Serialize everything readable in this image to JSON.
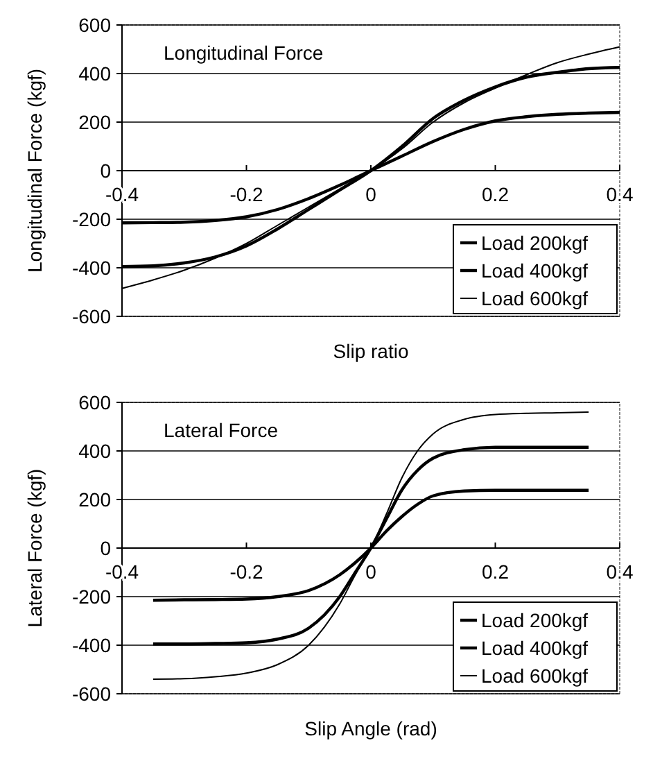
{
  "chart_data": [
    {
      "type": "line",
      "title": "Longitudinal Force",
      "xlabel": "Slip ratio",
      "ylabel": "Longitudinal Force (kgf)",
      "x": [
        -0.4,
        -0.35,
        -0.3,
        -0.25,
        -0.2,
        -0.15,
        -0.1,
        -0.05,
        0,
        0.05,
        0.1,
        0.15,
        0.2,
        0.25,
        0.3,
        0.35,
        0.4
      ],
      "series": [
        {
          "name": "Load 200kgf",
          "color": "#000000",
          "values": [
            -215,
            -214,
            -212,
            -205,
            -190,
            -160,
            -115,
            -60,
            0,
            60,
            120,
            170,
            205,
            222,
            232,
            237,
            240
          ]
        },
        {
          "name": "Load 400kgf",
          "color": "#000000",
          "values": [
            -395,
            -392,
            -380,
            -355,
            -310,
            -240,
            -160,
            -80,
            0,
            100,
            215,
            290,
            345,
            385,
            405,
            420,
            425
          ]
        },
        {
          "name": "Load 600kgf",
          "color": "#000000",
          "values": [
            -485,
            -450,
            -410,
            -360,
            -300,
            -225,
            -150,
            -75,
            0,
            90,
            200,
            280,
            340,
            395,
            445,
            480,
            510
          ]
        }
      ],
      "xlim": [
        -0.4,
        0.4
      ],
      "xticks": [
        -0.4,
        -0.2,
        0,
        0.2,
        0.4
      ],
      "ylim": [
        -600,
        600
      ],
      "yticks": [
        -600,
        -400,
        -200,
        0,
        200,
        400,
        600
      ],
      "grid": "y",
      "legend": "bottom right"
    },
    {
      "type": "line",
      "title": "Lateral Force",
      "xlabel": "Slip Angle (rad)",
      "ylabel": "Lateral Force (kgf)",
      "x": [
        -0.35,
        -0.3,
        -0.25,
        -0.2,
        -0.15,
        -0.1,
        -0.05,
        -0.025,
        0,
        0.025,
        0.05,
        0.075,
        0.1,
        0.15,
        0.2,
        0.25,
        0.3,
        0.35
      ],
      "series": [
        {
          "name": "Load 200kgf",
          "color": "#000000",
          "values": [
            -215,
            -213,
            -212,
            -210,
            -200,
            -175,
            -110,
            -60,
            0,
            70,
            130,
            180,
            215,
            235,
            238,
            238,
            238,
            238
          ]
        },
        {
          "name": "Load 400kgf",
          "color": "#000000",
          "values": [
            -395,
            -395,
            -393,
            -390,
            -375,
            -330,
            -200,
            -100,
            0,
            120,
            240,
            320,
            370,
            405,
            415,
            415,
            415,
            415
          ]
        },
        {
          "name": "Load 600kgf",
          "color": "#000000",
          "values": [
            -540,
            -538,
            -530,
            -515,
            -480,
            -400,
            -230,
            -110,
            0,
            140,
            290,
            400,
            470,
            530,
            550,
            555,
            557,
            560
          ]
        }
      ],
      "xlim": [
        -0.4,
        0.4
      ],
      "xticks": [
        -0.4,
        -0.2,
        0,
        0.2,
        0.4
      ],
      "ylim": [
        -600,
        600
      ],
      "yticks": [
        -600,
        -400,
        -200,
        0,
        200,
        400,
        600
      ],
      "grid": "y",
      "legend": "bottom right"
    }
  ]
}
